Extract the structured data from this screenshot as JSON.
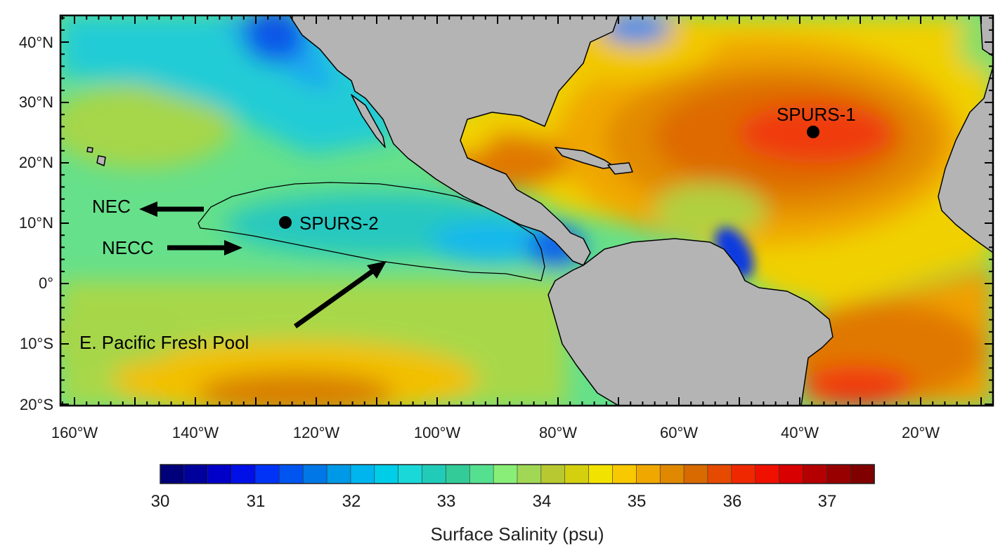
{
  "map": {
    "lat_ticks": [
      "40°N",
      "30°N",
      "20°N",
      "10°N",
      "0°",
      "10°S",
      "20°S"
    ],
    "lon_ticks": [
      "160°W",
      "140°W",
      "120°W",
      "100°W",
      "80°W",
      "60°W",
      "40°W",
      "20°W"
    ],
    "annotations": {
      "spurs1": "SPURS-1",
      "spurs2": "SPURS-2",
      "nec": "NEC",
      "necc": "NECC",
      "fresh_pool": "E. Pacific Fresh Pool"
    },
    "land_color": "#b4b4b4"
  },
  "colorbar": {
    "title": "Surface Salinity (psu)",
    "labels": [
      "30",
      "31",
      "32",
      "33",
      "34",
      "35",
      "36",
      "37"
    ],
    "colors": [
      "#00007a",
      "#00009c",
      "#0000c8",
      "#0010e6",
      "#0033f5",
      "#0055f0",
      "#0077e6",
      "#0099e8",
      "#00b5ee",
      "#00cde8",
      "#1ad8d8",
      "#20ccb8",
      "#33cc99",
      "#55e090",
      "#88ee77",
      "#a0d855",
      "#b8c830",
      "#d4d010",
      "#f2e200",
      "#f8c800",
      "#f0a800",
      "#e08800",
      "#d86a00",
      "#e64a00",
      "#f02800",
      "#f01000",
      "#d80000",
      "#b40000",
      "#980000",
      "#800000"
    ]
  }
}
